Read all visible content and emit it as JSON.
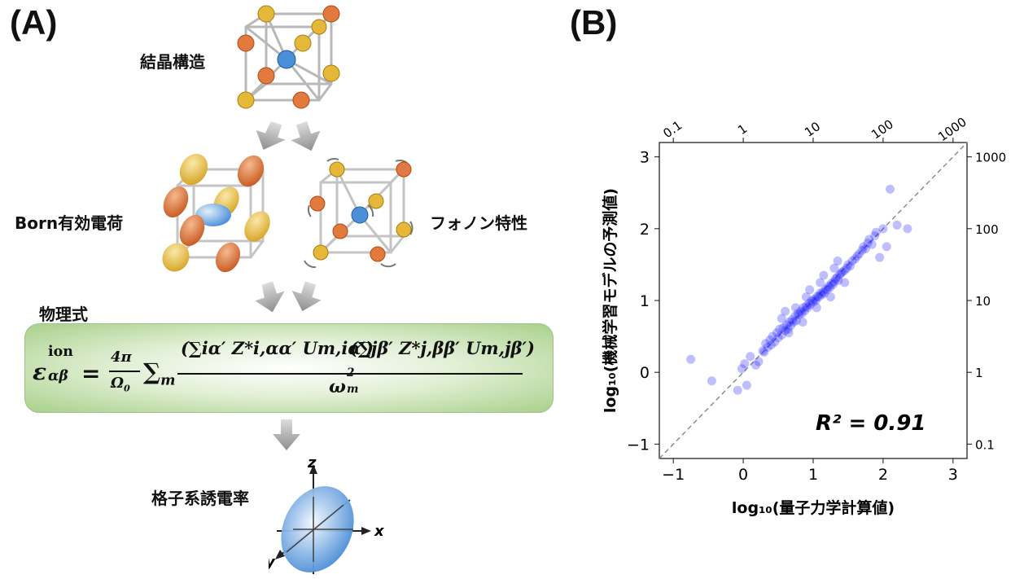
{
  "panel_a": {
    "label": "(A)",
    "crystal_structure": "結晶構造",
    "born_charge": "Born有効電荷",
    "phonon": "フォノン特性",
    "physics_formula": "物理式",
    "permittivity": "格子系誘電率",
    "equation": {
      "lhs": "ε",
      "lhs_sup": "ion",
      "lhs_sub": "αβ",
      "equals": "=",
      "prefactor_num": "4π",
      "prefactor_den": "Ω",
      "prefactor_den_sub": "0",
      "sum_m": "∑",
      "sum_m_sub": "m",
      "numerator_left": "(∑iα′ Z*i,αα′ Um,iα′)",
      "numerator_right": "(∑jβ′ Z*j,ββ′ Um,jβ′)",
      "denominator": "ω",
      "denominator_sup": "2",
      "denominator_sub": "m"
    },
    "axes": {
      "z": "z",
      "x": "x",
      "y": "y"
    }
  },
  "panel_b": {
    "label": "(B)",
    "r2_label": "R² = 0.91",
    "xlabel": "log₁₀(量子力学計算値)",
    "ylabel": "log₁₀(機械学習モデルの予測値)"
  },
  "chart_data": {
    "type": "scatter",
    "xlabel": "log₁₀(量子力学計算値)",
    "ylabel": "log₁₀(機械学習モデルの予測値)",
    "xlim": [
      -1.2,
      3.2
    ],
    "ylim": [
      -1.2,
      3.2
    ],
    "x_ticks": [
      "−1",
      "0",
      "1",
      "2",
      "3"
    ],
    "y_ticks": [
      "−1",
      "0",
      "1",
      "2",
      "3"
    ],
    "top_ticks": [
      "0.1",
      "1",
      "10",
      "100",
      "1000"
    ],
    "right_ticks": [
      "0.1",
      "1",
      "10",
      "100",
      "1000"
    ],
    "annotation": "R² = 0.91",
    "reference_line": "y = x (dashed)",
    "point_color": "#1a1aff",
    "series": [
      {
        "x": [
          -0.75,
          -0.45,
          -0.08,
          -0.02,
          0.02,
          0.05,
          0.1,
          0.18,
          0.22,
          0.28,
          0.3,
          0.32,
          0.35,
          0.38,
          0.4,
          0.42,
          0.45,
          0.48,
          0.5,
          0.52,
          0.55,
          0.57,
          0.6,
          0.62,
          0.64,
          0.66,
          0.68,
          0.7,
          0.72,
          0.74,
          0.76,
          0.78,
          0.8,
          0.82,
          0.84,
          0.86,
          0.88,
          0.9,
          0.92,
          0.94,
          0.96,
          0.98,
          1.0,
          1.02,
          1.04,
          1.06,
          1.08,
          1.1,
          1.12,
          1.14,
          1.16,
          1.18,
          1.2,
          1.22,
          1.24,
          1.26,
          1.28,
          1.3,
          1.32,
          1.34,
          1.36,
          1.38,
          1.4,
          1.42,
          1.45,
          1.48,
          1.5,
          1.53,
          1.56,
          1.6,
          1.63,
          1.66,
          1.7,
          1.72,
          1.75,
          1.78,
          1.8,
          1.84,
          1.88,
          1.9,
          1.95,
          2.0,
          2.05,
          2.1,
          2.2,
          2.35,
          0.55,
          0.75,
          0.95,
          1.15,
          1.35,
          0.65,
          0.85,
          1.05,
          1.25,
          1.45,
          0.6,
          0.9,
          1.1,
          1.3
        ],
        "y": [
          0.18,
          -0.12,
          -0.25,
          0.05,
          0.12,
          -0.18,
          0.22,
          0.1,
          0.15,
          0.3,
          0.28,
          0.4,
          0.35,
          0.45,
          0.38,
          0.5,
          0.42,
          0.55,
          0.48,
          0.6,
          0.52,
          0.62,
          0.58,
          0.66,
          0.6,
          0.7,
          0.65,
          0.73,
          0.7,
          0.78,
          0.72,
          0.82,
          0.8,
          0.85,
          0.82,
          0.9,
          0.86,
          0.92,
          0.9,
          0.96,
          0.94,
          1.0,
          0.98,
          1.02,
          1.0,
          1.06,
          1.05,
          1.1,
          1.08,
          1.12,
          1.1,
          1.16,
          1.15,
          1.2,
          1.18,
          1.24,
          1.22,
          1.26,
          1.3,
          1.32,
          1.28,
          1.36,
          1.38,
          1.4,
          1.42,
          1.45,
          1.5,
          1.48,
          1.55,
          1.58,
          1.62,
          1.65,
          1.7,
          1.75,
          1.72,
          1.8,
          1.85,
          1.78,
          1.9,
          1.95,
          1.6,
          2.0,
          1.75,
          2.55,
          2.05,
          2.0,
          0.75,
          0.9,
          1.15,
          1.35,
          1.55,
          0.55,
          0.7,
          0.9,
          1.05,
          1.25,
          0.85,
          1.05,
          1.25,
          1.45
        ]
      }
    ]
  }
}
